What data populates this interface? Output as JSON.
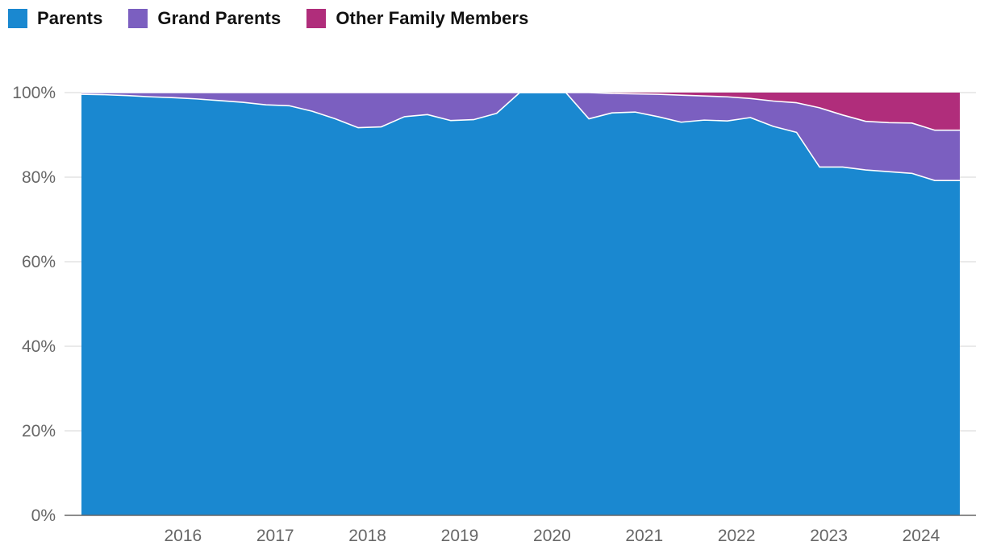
{
  "chart_data": {
    "type": "area",
    "stacked": true,
    "legend_position": "top-left",
    "grid": true,
    "title": "",
    "xlabel": "",
    "ylabel": "",
    "x_range": [
      2015.4,
      2024.92
    ],
    "ylim": [
      0,
      100
    ],
    "y_ticks": [
      0,
      20,
      40,
      60,
      80,
      100
    ],
    "y_tick_labels": [
      "0%",
      "20%",
      "40%",
      "60%",
      "80%",
      "100%"
    ],
    "x_ticks": [
      2016,
      2017,
      2018,
      2019,
      2020,
      2021,
      2022,
      2023,
      2024
    ],
    "x_tick_labels": [
      "2016",
      "2017",
      "2018",
      "2019",
      "2020",
      "2021",
      "2022",
      "2023",
      "2024"
    ],
    "x": [
      2015.4,
      2015.65,
      2015.9,
      2016.15,
      2016.4,
      2016.65,
      2016.9,
      2017.15,
      2017.4,
      2017.65,
      2017.9,
      2018.15,
      2018.4,
      2018.65,
      2018.9,
      2019.15,
      2019.4,
      2019.65,
      2019.9,
      2020.15,
      2020.4,
      2020.65,
      2020.9,
      2021.15,
      2021.4,
      2021.65,
      2021.9,
      2022.15,
      2022.4,
      2022.65,
      2022.9,
      2023.15,
      2023.4,
      2023.65,
      2023.9,
      2024.15,
      2024.4,
      2024.65,
      2024.92
    ],
    "series": [
      {
        "name": "Parents",
        "color": "#1a88d0",
        "values": [
          99.6,
          99.5,
          99.3,
          99.0,
          98.8,
          98.5,
          98.1,
          97.7,
          97.1,
          96.9,
          95.6,
          93.8,
          91.7,
          91.9,
          94.3,
          94.8,
          93.4,
          93.6,
          95.1,
          100,
          100,
          100,
          93.8,
          95.2,
          95.4,
          94.3,
          93.0,
          93.5,
          93.3,
          94.1,
          92.0,
          90.6,
          82.4,
          82.4,
          81.7,
          81.3,
          80.9,
          79.2,
          79.2
        ]
      },
      {
        "name": "Grand Parents",
        "color": "#7b5fc0",
        "values": [
          0.4,
          0.5,
          0.7,
          1.0,
          1.2,
          1.5,
          1.9,
          2.3,
          2.9,
          3.1,
          4.4,
          6.2,
          8.3,
          8.1,
          5.7,
          5.2,
          6.6,
          6.4,
          4.9,
          0,
          0,
          0,
          6.2,
          4.6,
          4.3,
          5.3,
          6.4,
          5.7,
          5.7,
          4.5,
          6.0,
          7.0,
          14.0,
          12.3,
          11.5,
          11.6,
          11.9,
          11.9,
          11.9
        ]
      },
      {
        "name": "Other Family Members",
        "color": "#b02d7b",
        "values": [
          0,
          0,
          0,
          0,
          0,
          0,
          0,
          0,
          0,
          0,
          0,
          0,
          0,
          0,
          0,
          0,
          0,
          0,
          0,
          0,
          0,
          0,
          0,
          0.2,
          0.3,
          0.4,
          0.6,
          0.8,
          1.0,
          1.4,
          2.0,
          2.4,
          3.6,
          5.3,
          6.8,
          7.1,
          7.2,
          8.9,
          8.9
        ]
      }
    ]
  }
}
